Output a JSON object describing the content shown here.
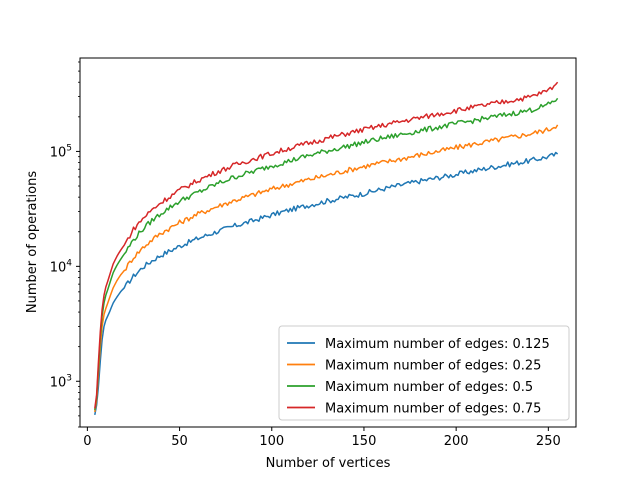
{
  "chart_data": {
    "type": "line",
    "xlabel": "Number of vertices",
    "ylabel": "Number of operations",
    "xlim": [
      -4,
      265
    ],
    "ylim": [
      400,
      650000
    ],
    "yscale": "log",
    "grid": false,
    "legend_position": "lower-right",
    "x_ticks": [
      0,
      50,
      100,
      150,
      200,
      250
    ],
    "x_tick_labels": [
      "0",
      "50",
      "100",
      "150",
      "200",
      "250"
    ],
    "y_ticks": [
      1000,
      10000,
      100000
    ],
    "y_tick_labels": [
      {
        "base": "10",
        "exp": "3"
      },
      {
        "base": "10",
        "exp": "4"
      },
      {
        "base": "10",
        "exp": "5"
      }
    ],
    "x": [
      4,
      5,
      6,
      7,
      8,
      9,
      10,
      12,
      14,
      16,
      18,
      20,
      25,
      30,
      35,
      40,
      50,
      60,
      70,
      80,
      90,
      100,
      110,
      120,
      130,
      140,
      150,
      160,
      170,
      180,
      190,
      200,
      210,
      220,
      230,
      240,
      250,
      255
    ],
    "series": [
      {
        "name": "Maximum number of edges: 0.125",
        "color": "#1f77b4",
        "values": [
          510,
          620,
          900,
          1500,
          2300,
          3000,
          3400,
          4000,
          4800,
          5400,
          6000,
          6500,
          8200,
          9800,
          11200,
          12500,
          15000,
          17500,
          20000,
          22500,
          25000,
          28000,
          31000,
          34000,
          37000,
          40000,
          43000,
          47000,
          51000,
          55000,
          59000,
          63000,
          68000,
          73000,
          78000,
          83000,
          90000,
          95000
        ]
      },
      {
        "name": "Maximum number of edges: 0.25",
        "color": "#ff7f0e",
        "values": [
          540,
          680,
          1150,
          2000,
          3000,
          3800,
          4300,
          5300,
          6500,
          7500,
          8400,
          9200,
          12000,
          14500,
          17000,
          19500,
          24000,
          28500,
          33000,
          37500,
          42000,
          47000,
          52000,
          57000,
          62000,
          68000,
          74000,
          80000,
          86000,
          93000,
          100000,
          108000,
          116000,
          124000,
          133000,
          142000,
          155000,
          170000
        ]
      },
      {
        "name": "Maximum number of edges: 0.5",
        "color": "#2ca02c",
        "values": [
          560,
          720,
          1300,
          2400,
          3700,
          4800,
          5600,
          7000,
          8800,
          10200,
          11500,
          12800,
          17000,
          21000,
          25000,
          29000,
          37000,
          44000,
          52000,
          60000,
          67000,
          75000,
          83000,
          92000,
          101000,
          110000,
          120000,
          130000,
          140000,
          151000,
          162000,
          174000,
          186000,
          199000,
          213000,
          228000,
          255000,
          290000
        ]
      },
      {
        "name": "Maximum number of edges: 0.75",
        "color": "#d62728",
        "values": [
          580,
          760,
          1450,
          2700,
          4200,
          5600,
          6600,
          8300,
          10500,
          12200,
          13800,
          15300,
          21000,
          26000,
          31000,
          36000,
          46000,
          56000,
          66000,
          76000,
          86000,
          96000,
          107000,
          118000,
          130000,
          142000,
          155000,
          168000,
          182000,
          196000,
          211000,
          227000,
          243000,
          260000,
          278000,
          297000,
          340000,
          400000
        ]
      }
    ]
  }
}
